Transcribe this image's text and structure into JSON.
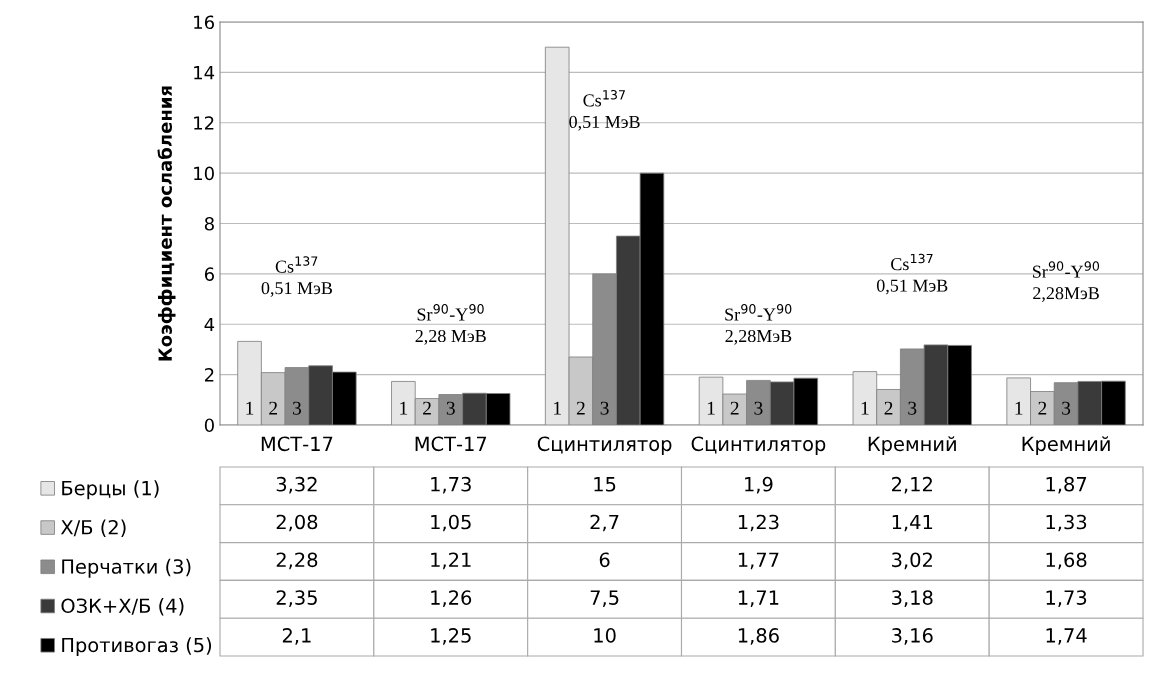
{
  "chart_data": {
    "type": "bar",
    "ylabel": "Коэффициент ослабления",
    "categories": [
      "МСТ-17",
      "МСТ-17",
      "Сцинтилятор",
      "Сцинтилятор",
      "Кремний",
      "Кремний"
    ],
    "series": [
      {
        "name": "Берцы (1)",
        "color": "#e6e6e6",
        "values": [
          3.32,
          1.73,
          15,
          1.9,
          2.12,
          1.87
        ],
        "value_labels": [
          "3,32",
          "1,73",
          "15",
          "1,9",
          "2,12",
          "1,87"
        ]
      },
      {
        "name": "Х/Б (2)",
        "color": "#c8c8c8",
        "values": [
          2.08,
          1.05,
          2.7,
          1.23,
          1.41,
          1.33
        ],
        "value_labels": [
          "2,08",
          "1,05",
          "2,7",
          "1,23",
          "1,41",
          "1,33"
        ]
      },
      {
        "name": "Перчатки (3)",
        "color": "#8c8c8c",
        "values": [
          2.28,
          1.21,
          6,
          1.77,
          3.02,
          1.68
        ],
        "value_labels": [
          "2,28",
          "1,21",
          "6",
          "1,77",
          "3,02",
          "1,68"
        ]
      },
      {
        "name": "ОЗК+Х/Б (4)",
        "color": "#3a3a3a",
        "values": [
          2.35,
          1.26,
          7.5,
          1.71,
          3.18,
          1.73
        ],
        "value_labels": [
          "2,35",
          "1,26",
          "7,5",
          "1,71",
          "3,18",
          "1,73"
        ]
      },
      {
        "name": "Противогаз (5)",
        "color": "#000000",
        "values": [
          2.1,
          1.25,
          10,
          1.86,
          3.16,
          1.74
        ],
        "value_labels": [
          "2,1",
          "1,25",
          "10",
          "1,86",
          "3,16",
          "1,74"
        ]
      }
    ],
    "ylim": [
      0,
      16
    ],
    "yticks": [
      0,
      2,
      4,
      6,
      8,
      10,
      12,
      14,
      16
    ],
    "grid": "y",
    "legend": "bottom left",
    "annotations": [
      "Cs$^{137}$\n0,51 МэВ",
      "Sr$^{90}$-Y$^{90}$\n2,28 МэВ",
      "Cs$^{137}$\n0,51 МэВ",
      "Sr$^{90}$-Y$^{90}$\n2,28МэВ",
      "Cs$^{137}$\n0,51 МэВ",
      "Sr$^{90}$-Y$^{90}$\n2,28МэВ",
      "1",
      "2",
      "3",
      "1",
      "2",
      "3",
      "1",
      "2",
      "3",
      "1",
      "2",
      "3",
      "1",
      "2",
      "3",
      "1",
      "2",
      "3"
    ]
  }
}
